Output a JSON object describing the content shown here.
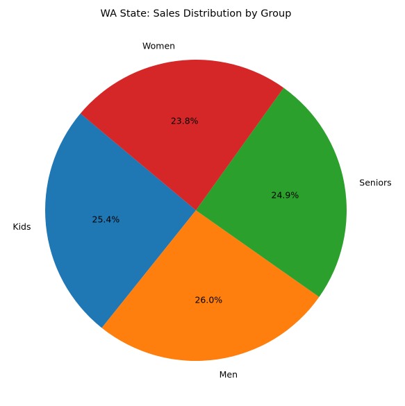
{
  "chart_data": {
    "type": "pie",
    "title": "WA State: Sales Distribution by Group",
    "start_angle_deg": 140,
    "direction": "counterclockwise",
    "slices": [
      {
        "label": "Kids",
        "percent": 25.4,
        "percent_label": "25.4%",
        "color": "#1f77b4"
      },
      {
        "label": "Men",
        "percent": 26.0,
        "percent_label": "26.0%",
        "color": "#ff7f0e"
      },
      {
        "label": "Seniors",
        "percent": 24.9,
        "percent_label": "24.9%",
        "color": "#2ca02c"
      },
      {
        "label": "Women",
        "percent": 23.8,
        "percent_label": "23.8%",
        "color": "#d62728"
      }
    ]
  }
}
